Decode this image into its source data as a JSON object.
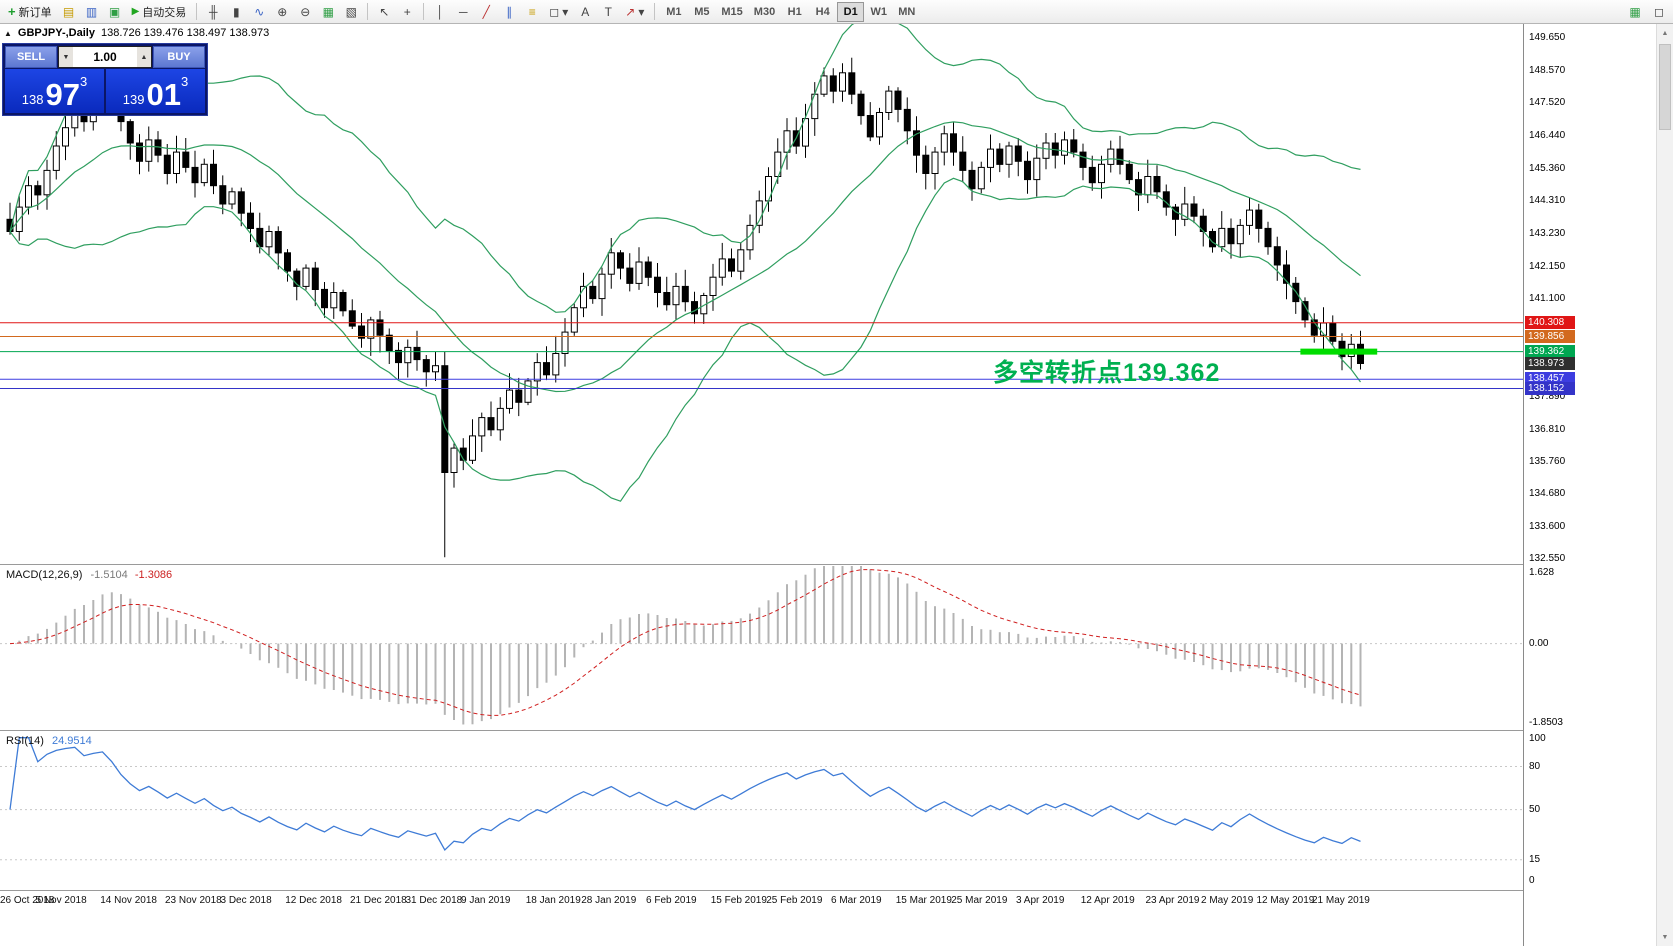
{
  "toolbar": {
    "new_order_label": "新订单",
    "autotrading_label": "自动交易",
    "timeframes": [
      "M1",
      "M5",
      "M15",
      "M30",
      "H1",
      "H4",
      "D1",
      "W1",
      "MN"
    ],
    "active_timeframe": "D1"
  },
  "icons": {
    "plus": "+",
    "play": "▶",
    "profile": "▤",
    "chart_list": "▥",
    "terminal": "▣",
    "bars": "╫",
    "candles": "▮",
    "line": "∿",
    "zoom_in": "⊕",
    "zoom_out": "⊖",
    "tile": "▦",
    "grid": "▧",
    "cursor": "↖",
    "crosshair": "+",
    "vline": "│",
    "hline": "─",
    "trend": "╱",
    "channel": "∥",
    "fibonacci": "≡",
    "shapes": "◻",
    "text_tool": "A",
    "label_tool": "T",
    "arrow_tool": "↗",
    "dropdown": "▾",
    "up": "▲",
    "down": "▼",
    "collapse": "▲"
  },
  "header": {
    "symbol": "GBPJPY-,Daily",
    "ohlc": "138.726 139.476 138.497 138.973"
  },
  "trade_panel": {
    "sell_label": "SELL",
    "buy_label": "BUY",
    "volume": "1.00",
    "sell_price": {
      "prefix": "138",
      "big": "97",
      "sup": "3"
    },
    "buy_price": {
      "prefix": "139",
      "big": "01",
      "sup": "3"
    }
  },
  "main_chart": {
    "annotation": {
      "text": "多空转折点139.362",
      "color": "#00b050"
    },
    "y_ticks": [
      "149.650",
      "148.570",
      "147.520",
      "146.440",
      "145.360",
      "144.310",
      "143.230",
      "142.150",
      "141.100",
      "137.890",
      "136.810",
      "135.760",
      "134.680",
      "133.600",
      "132.550"
    ],
    "level_lines": [
      {
        "label": "140.308",
        "price": 140.308,
        "color": "#e01616"
      },
      {
        "label": "139.856",
        "price": 139.856,
        "color": "#d2691e"
      },
      {
        "label": "139.362",
        "price": 139.362,
        "color": "#00a651"
      },
      {
        "label": "138.457",
        "price": 138.457,
        "color": "#3d3de0"
      },
      {
        "label": "138.152",
        "price": 138.152,
        "color": "#3434c8"
      }
    ],
    "current_price": {
      "label": "138.973",
      "price": 138.973,
      "color": "#2f2f2f"
    },
    "highlight_segment": {
      "price": 139.362,
      "from_index": 139.5,
      "to_index": 147.8,
      "color": "#00dd00"
    }
  },
  "macd_panel": {
    "name": "MACD(12,26,9)",
    "value_main": "-1.5104",
    "value_signal": "-1.3086",
    "ticks": [
      {
        "label": "1.628",
        "value": 1.628
      },
      {
        "label": "0.00",
        "value": 0
      },
      {
        "label": "-1.8503",
        "value": -1.8503
      }
    ],
    "histogram_color": "#b4b4b4",
    "signal_color": "#d02020"
  },
  "rsi_panel": {
    "name": "RSI(14)",
    "value": "24.9514",
    "ticks": [
      {
        "label": "100",
        "value": 100
      },
      {
        "label": "80",
        "value": 80
      },
      {
        "label": "50",
        "value": 50
      },
      {
        "label": "15",
        "value": 15
      },
      {
        "label": "0",
        "value": 0
      }
    ],
    "levels": [
      80,
      50,
      15
    ],
    "line_color": "#3e7bd6"
  },
  "x_axis": {
    "dates": [
      {
        "label": "26 Oct 2018",
        "index": 0
      },
      {
        "label": "5 Nov 2018",
        "index": 6
      },
      {
        "label": "14 Nov 2018",
        "index": 13
      },
      {
        "label": "23 Nov 2018",
        "index": 20
      },
      {
        "label": "3 Dec 2018",
        "index": 26
      },
      {
        "label": "12 Dec 2018",
        "index": 33
      },
      {
        "label": "21 Dec 2018",
        "index": 40
      },
      {
        "label": "31 Dec 2018",
        "index": 46
      },
      {
        "label": "9 Jan 2019",
        "index": 52
      },
      {
        "label": "18 Jan 2019",
        "index": 59
      },
      {
        "label": "28 Jan 2019",
        "index": 65
      },
      {
        "label": "6 Feb 2019",
        "index": 72
      },
      {
        "label": "15 Feb 2019",
        "index": 79
      },
      {
        "label": "25 Feb 2019",
        "index": 85
      },
      {
        "label": "6 Mar 2019",
        "index": 92
      },
      {
        "label": "15 Mar 2019",
        "index": 99
      },
      {
        "label": "25 Mar 2019",
        "index": 105
      },
      {
        "label": "3 Apr 2019",
        "index": 112
      },
      {
        "label": "12 Apr 2019",
        "index": 119
      },
      {
        "label": "23 Apr 2019",
        "index": 126
      },
      {
        "label": "2 May 2019",
        "index": 132
      },
      {
        "label": "12 May 2019",
        "index": 138
      },
      {
        "label": "21 May 2019",
        "index": 144
      }
    ]
  },
  "chart_data": {
    "type": "candlestick",
    "symbol": "GBPJPY",
    "period": "Daily",
    "y_range": [
      132.4,
      150.1
    ],
    "macd_range": [
      -1.95,
      1.75
    ],
    "bollinger": {
      "period": 20,
      "deviation": 2,
      "color": "#2f9e5f"
    },
    "crash": {
      "index": 47,
      "low": 132.62
    },
    "closes": [
      143.3,
      144.1,
      144.8,
      144.5,
      145.3,
      146.1,
      146.7,
      147.2,
      146.9,
      147.6,
      148.2,
      147.7,
      146.9,
      146.2,
      145.6,
      146.3,
      145.8,
      145.2,
      145.9,
      145.4,
      144.9,
      145.5,
      144.8,
      144.2,
      144.6,
      143.9,
      143.4,
      142.8,
      143.3,
      142.6,
      142.0,
      141.5,
      142.1,
      141.4,
      140.8,
      141.3,
      140.7,
      140.2,
      139.8,
      140.4,
      139.9,
      139.4,
      139.0,
      139.5,
      139.1,
      138.7,
      138.9,
      135.4,
      136.2,
      135.8,
      136.6,
      137.2,
      136.8,
      137.5,
      138.1,
      137.7,
      138.4,
      139.0,
      138.6,
      139.3,
      140.0,
      140.8,
      141.5,
      141.1,
      141.9,
      142.6,
      142.1,
      141.6,
      142.3,
      141.8,
      141.3,
      140.9,
      141.5,
      141.0,
      140.6,
      141.2,
      141.8,
      142.4,
      142.0,
      142.7,
      143.5,
      144.3,
      145.1,
      145.9,
      146.6,
      146.1,
      147.0,
      147.8,
      148.4,
      147.9,
      148.5,
      147.8,
      147.1,
      146.4,
      147.2,
      147.9,
      147.3,
      146.6,
      145.8,
      145.2,
      145.9,
      146.5,
      145.9,
      145.3,
      144.7,
      145.4,
      146.0,
      145.5,
      146.1,
      145.6,
      145.0,
      145.7,
      146.2,
      145.8,
      146.3,
      145.9,
      145.4,
      144.9,
      145.5,
      146.0,
      145.5,
      145.0,
      144.5,
      145.1,
      144.6,
      144.1,
      143.7,
      144.2,
      143.8,
      143.3,
      142.8,
      143.4,
      142.9,
      143.5,
      144.0,
      143.4,
      142.8,
      142.2,
      141.6,
      141.0,
      140.4,
      139.9,
      140.3,
      139.7,
      139.2,
      139.6,
      138.97
    ]
  }
}
